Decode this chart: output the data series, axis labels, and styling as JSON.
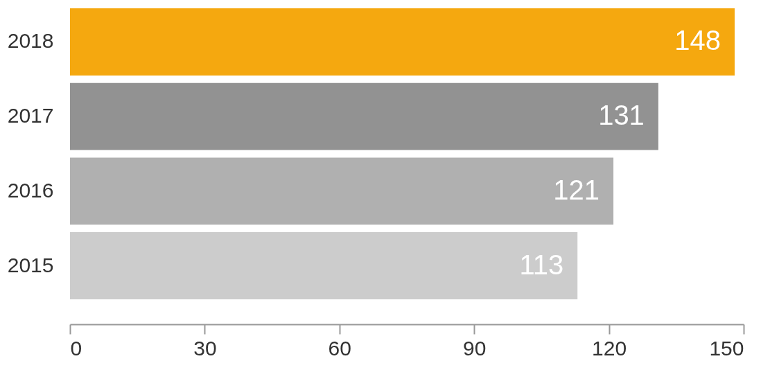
{
  "chart_data": {
    "type": "bar",
    "orientation": "horizontal",
    "categories": [
      "2018",
      "2017",
      "2016",
      "2015"
    ],
    "values": [
      148,
      131,
      121,
      113
    ],
    "colors": [
      "#f5a80f",
      "#929292",
      "#b0b0b0",
      "#cccccc"
    ],
    "xlim": [
      0,
      150
    ],
    "xticks": [
      0,
      30,
      60,
      90,
      120,
      150
    ],
    "data_labels": true,
    "grid": false
  }
}
